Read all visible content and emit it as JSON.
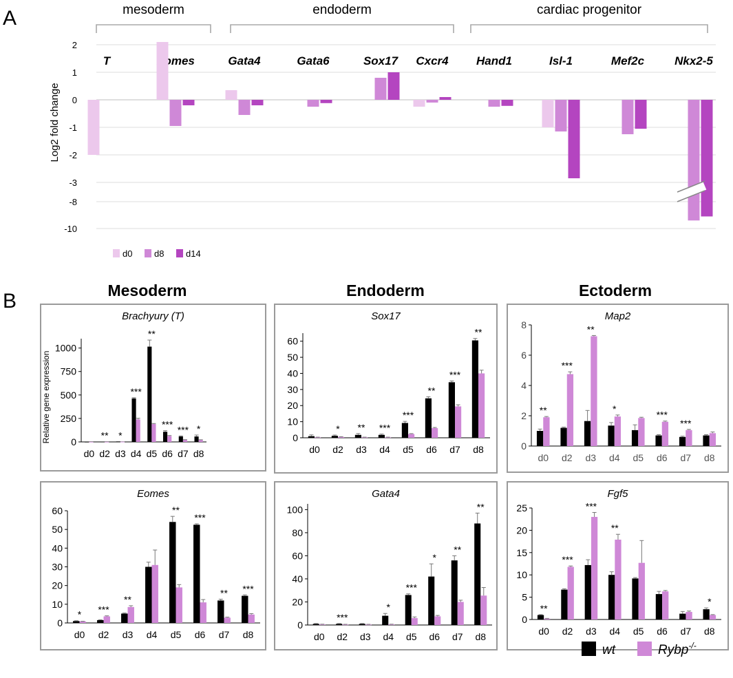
{
  "panel_labels": {
    "a": "A",
    "b": "B"
  },
  "chart_data": [
    {
      "id": "A",
      "type": "bar",
      "ylabel": "Log2 fold change",
      "y_ticks": [
        "2",
        "1",
        "0",
        "-1",
        "-2",
        "-3",
        "-8",
        "-10"
      ],
      "axis_break": "between -3 and -8",
      "groups": [
        {
          "label": "mesoderm",
          "genes": [
            "T",
            "Eomes"
          ]
        },
        {
          "label": "endoderm",
          "genes": [
            "Gata4",
            "Gata6",
            "Sox17",
            "Cxcr4"
          ]
        },
        {
          "label": "cardiac progenitor",
          "genes": [
            "Hand1",
            "Isl-1",
            "Mef2c",
            "Nkx2-5"
          ]
        }
      ],
      "categories": [
        "T",
        "Eomes",
        "Gata4",
        "Gata6",
        "Sox17",
        "Cxcr4",
        "Hand1",
        "Isl-1",
        "Mef2c",
        "Nkx2-5"
      ],
      "series": [
        {
          "name": "d0",
          "color": "#ecc8ec",
          "values": [
            -2.0,
            2.1,
            0.35,
            null,
            null,
            -0.25,
            null,
            -1.0,
            null,
            null
          ]
        },
        {
          "name": "d8",
          "color": "#cf88d7",
          "values": [
            null,
            -0.95,
            -0.55,
            -0.25,
            0.8,
            -0.1,
            -0.25,
            -1.15,
            -1.25,
            -9.4
          ]
        },
        {
          "name": "d14",
          "color": "#b445c0",
          "values": [
            null,
            -0.2,
            -0.2,
            -0.12,
            1.0,
            0.1,
            -0.22,
            -2.85,
            -1.05,
            -9.1
          ]
        }
      ]
    },
    {
      "id": "B-Brachyury",
      "type": "bar",
      "section": "Mesoderm",
      "title": "Brachyury (T)",
      "ylabel": "Relative gene expression",
      "ylim": [
        0,
        1100
      ],
      "y_ticks": [
        "0",
        "250",
        "500",
        "750",
        "1000"
      ],
      "categories": [
        "d0",
        "d2",
        "d3",
        "d4",
        "d5",
        "d6",
        "d7",
        "d8"
      ],
      "series": [
        {
          "name": "wt",
          "color": "#000000",
          "values": [
            1,
            2,
            5,
            463,
            1015,
            108,
            58,
            58
          ],
          "errors": [
            0,
            0,
            0,
            8,
            70,
            12,
            6,
            15
          ]
        },
        {
          "name": "Rybp-/-",
          "color": "#cf88d7",
          "values": [
            1,
            1,
            2,
            240,
            190,
            62,
            20,
            20
          ],
          "errors": [
            0,
            0,
            0,
            12,
            6,
            6,
            4,
            3
          ]
        }
      ],
      "significance": [
        "",
        "**",
        "*",
        "***",
        "**",
        "***",
        "***",
        "*"
      ]
    },
    {
      "id": "B-Sox17",
      "type": "bar",
      "section": "Endoderm",
      "title": "Sox17",
      "ylim": [
        0,
        65
      ],
      "y_ticks": [
        "0",
        "10",
        "20",
        "30",
        "40",
        "50",
        "60"
      ],
      "categories": [
        "d0",
        "d2",
        "d3",
        "d4",
        "d5",
        "d6",
        "d7",
        "d8"
      ],
      "series": [
        {
          "name": "wt",
          "color": "#000000",
          "values": [
            1,
            1.2,
            1.8,
            1.8,
            9.2,
            24.5,
            34.5,
            60.5
          ],
          "errors": [
            0.8,
            0.5,
            0.8,
            0.5,
            1,
            1,
            0.8,
            1.2
          ]
        },
        {
          "name": "Rybp-/-",
          "color": "#cf88d7",
          "values": [
            0.3,
            0.5,
            0.3,
            0.3,
            2.3,
            6,
            19.5,
            40
          ],
          "errors": [
            0.1,
            0.2,
            0.1,
            0.1,
            0.3,
            0.4,
            1,
            2
          ]
        }
      ],
      "significance": [
        "",
        "*",
        "**",
        "***",
        "***",
        "**",
        "***",
        "**"
      ]
    },
    {
      "id": "B-Map2",
      "type": "bar",
      "section": "Ectoderm",
      "title": "Map2",
      "ylim": [
        0,
        8
      ],
      "y_ticks": [
        "0",
        "2",
        "4",
        "6",
        "8"
      ],
      "categories": [
        "d0",
        "d2",
        "d3",
        "d4",
        "d5",
        "d6",
        "d7",
        "d8"
      ],
      "series": [
        {
          "name": "wt",
          "color": "#000000",
          "values": [
            1,
            1.2,
            1.65,
            1.35,
            1.05,
            0.7,
            0.6,
            0.7
          ],
          "errors": [
            0.12,
            0.05,
            0.7,
            0.2,
            0.35,
            0.05,
            0.05,
            0.05
          ]
        },
        {
          "name": "Rybp-/-",
          "color": "#cf88d7",
          "values": [
            1.9,
            4.75,
            7.25,
            1.95,
            1.85,
            1.6,
            1.05,
            0.85
          ],
          "errors": [
            0.05,
            0.15,
            0.05,
            0.1,
            0.05,
            0.05,
            0.05,
            0.08
          ]
        }
      ],
      "significance": [
        "**",
        "***",
        "**",
        "*",
        "",
        "***",
        "***",
        ""
      ]
    },
    {
      "id": "B-Eomes",
      "type": "bar",
      "title": "Eomes",
      "ylim": [
        0,
        60
      ],
      "y_ticks": [
        "0",
        "10",
        "20",
        "30",
        "40",
        "50",
        "60"
      ],
      "categories": [
        "d0",
        "d2",
        "d3",
        "d4",
        "d5",
        "d6",
        "d7",
        "d8"
      ],
      "series": [
        {
          "name": "wt",
          "color": "#000000",
          "values": [
            1,
            1.5,
            5,
            30,
            54,
            52.5,
            12,
            14.5
          ],
          "errors": [
            0.2,
            0.2,
            0.3,
            2.5,
            3,
            0.5,
            0.7,
            0.5
          ]
        },
        {
          "name": "Rybp-/-",
          "color": "#cf88d7",
          "values": [
            0.8,
            3.5,
            8.5,
            31,
            19,
            11,
            2.8,
            4.5
          ],
          "errors": [
            0.1,
            0.3,
            0.7,
            8,
            1.5,
            1.5,
            0.3,
            0.5
          ]
        }
      ],
      "significance": [
        "*",
        "***",
        "**",
        "",
        "**",
        "***",
        "**",
        "***"
      ]
    },
    {
      "id": "B-Gata4",
      "type": "bar",
      "title": "Gata4",
      "ylim": [
        0,
        105
      ],
      "y_ticks": [
        "0",
        "20",
        "40",
        "60",
        "80",
        "100"
      ],
      "categories": [
        "d0",
        "d2",
        "d3",
        "d4",
        "d5",
        "d6",
        "d7",
        "d8"
      ],
      "series": [
        {
          "name": "wt",
          "color": "#000000",
          "values": [
            1,
            1,
            1,
            8,
            26,
            42,
            56,
            88
          ],
          "errors": [
            0.3,
            0.3,
            0.3,
            2,
            1,
            11,
            4,
            9
          ]
        },
        {
          "name": "Rybp-/-",
          "color": "#cf88d7",
          "values": [
            0.5,
            0.4,
            0.4,
            0.5,
            6,
            7.5,
            20,
            25.5
          ],
          "errors": [
            0.2,
            0.2,
            0.2,
            0.2,
            1,
            0.8,
            1.5,
            7
          ]
        }
      ],
      "significance": [
        "",
        "***",
        "",
        "*",
        "***",
        "*",
        "**",
        "**"
      ]
    },
    {
      "id": "B-Fgf5",
      "type": "bar",
      "title": "Fgf5",
      "ylim": [
        0,
        25
      ],
      "y_ticks": [
        "0",
        "5",
        "10",
        "15",
        "20",
        "25"
      ],
      "categories": [
        "d0",
        "d2",
        "d3",
        "d4",
        "d5",
        "d6",
        "d7",
        "d8"
      ],
      "series": [
        {
          "name": "wt",
          "color": "#000000",
          "values": [
            1,
            6.7,
            12.2,
            10,
            9.2,
            5.7,
            1.3,
            2.3
          ],
          "errors": [
            0.1,
            0.2,
            1.2,
            0.7,
            0.2,
            0.6,
            0.5,
            0.3
          ]
        },
        {
          "name": "Rybp-/-",
          "color": "#cf88d7",
          "values": [
            0.2,
            11.8,
            23,
            17.9,
            12.7,
            6.3,
            1.7,
            1
          ],
          "errors": [
            0.05,
            0.2,
            1,
            1.2,
            5,
            0.2,
            0.2,
            0.1
          ]
        }
      ],
      "significance": [
        "**",
        "***",
        "***",
        "**",
        "",
        "",
        "",
        "*"
      ]
    }
  ],
  "legend_b": {
    "wt": "wt",
    "ko_base": "Rybp",
    "ko_sup": "-/-"
  }
}
